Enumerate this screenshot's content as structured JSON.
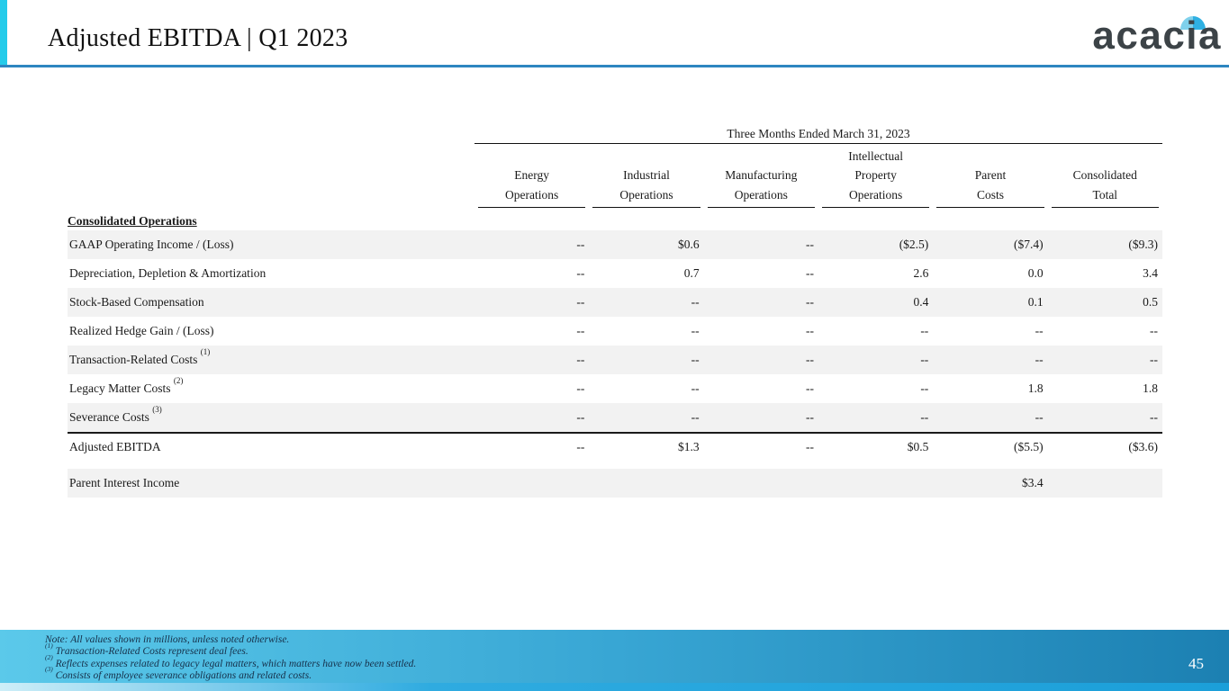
{
  "slide": {
    "title": "Adjusted EBITDA | Q1 2023",
    "logo_text": "acacia"
  },
  "colors": {
    "accent_cyan": "#24cbea",
    "header_border_blue": "#2d86c0",
    "row_shade_gray": "#f2f2f2",
    "footer_gradient_left": "#5bc9ea",
    "footer_gradient_right": "#1c80b2",
    "footer_strip_blue": "#2fabe0",
    "logo_text_color": "#3c4347",
    "logo_dome_left_blue": "#7fd1ec",
    "logo_dome_right_blue": "#2fb0e2"
  },
  "table": {
    "span_header": "Three Months Ended March 31, 2023",
    "section_label": "Consolidated Operations",
    "columns": [
      [
        "Energy",
        "Operations"
      ],
      [
        "Industrial",
        "Operations"
      ],
      [
        "Manufacturing",
        "Operations"
      ],
      [
        "Intellectual",
        "Property",
        "Operations"
      ],
      [
        "Parent",
        "Costs"
      ],
      [
        "Consolidated",
        "Total"
      ]
    ],
    "rows": [
      {
        "label": "GAAP Operating Income / (Loss)",
        "sup": "",
        "values": [
          "--",
          "$0.6",
          "--",
          "($2.5)",
          "($7.4)",
          "($9.3)"
        ],
        "shaded": true,
        "heavy_top": false
      },
      {
        "label": "Depreciation, Depletion & Amortization",
        "sup": "",
        "values": [
          "--",
          "0.7",
          "--",
          "2.6",
          "0.0",
          "3.4"
        ],
        "shaded": false,
        "heavy_top": false
      },
      {
        "label": "Stock-Based Compensation",
        "sup": "",
        "values": [
          "--",
          "--",
          "--",
          "0.4",
          "0.1",
          "0.5"
        ],
        "shaded": true,
        "heavy_top": false
      },
      {
        "label": "Realized Hedge Gain / (Loss)",
        "sup": "",
        "values": [
          "--",
          "--",
          "--",
          "--",
          "--",
          "--"
        ],
        "shaded": false,
        "heavy_top": false
      },
      {
        "label": "Transaction-Related Costs",
        "sup": "(1)",
        "values": [
          "--",
          "--",
          "--",
          "--",
          "--",
          "--"
        ],
        "shaded": true,
        "heavy_top": false
      },
      {
        "label": "Legacy Matter Costs",
        "sup": "(2)",
        "values": [
          "--",
          "--",
          "--",
          "--",
          "1.8",
          "1.8"
        ],
        "shaded": false,
        "heavy_top": false
      },
      {
        "label": "Severance Costs",
        "sup": "(3)",
        "values": [
          "--",
          "--",
          "--",
          "--",
          "--",
          "--"
        ],
        "shaded": true,
        "heavy_top": false
      },
      {
        "label": "Adjusted EBITDA",
        "sup": "",
        "values": [
          "--",
          "$1.3",
          "--",
          "$0.5",
          "($5.5)",
          "($3.6)"
        ],
        "shaded": false,
        "heavy_top": true
      }
    ],
    "extra_rows": [
      {
        "label": "Parent Interest Income",
        "sup": "",
        "values": [
          "",
          "",
          "",
          "",
          "$3.4",
          ""
        ],
        "shaded": true,
        "heavy_top": false
      }
    ]
  },
  "footer": {
    "notes": [
      {
        "sup": "",
        "text": "Note: All values shown in millions, unless noted otherwise."
      },
      {
        "sup": "(1)",
        "text": "Transaction-Related Costs represent deal fees."
      },
      {
        "sup": "(2)",
        "text": "Reflects expenses related to legacy legal matters, which matters have now been settled."
      },
      {
        "sup": "(3)",
        "text": "Consists of employee severance obligations and related costs."
      }
    ],
    "page_number": "45"
  }
}
